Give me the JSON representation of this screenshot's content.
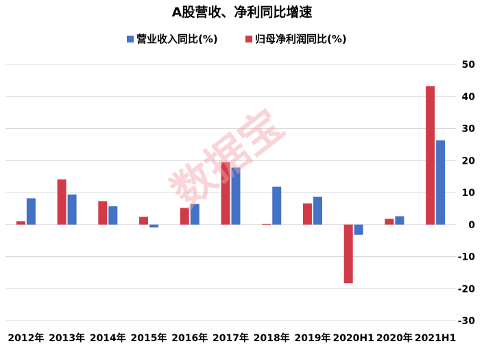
{
  "chart_data": {
    "type": "bar",
    "title": "A股营收、净利同比增速",
    "categories": [
      "2012年",
      "2013年",
      "2014年",
      "2015年",
      "2016年",
      "2017年",
      "2018年",
      "2019年",
      "2020H1",
      "2020年",
      "2021H1"
    ],
    "series": [
      {
        "name": "营业收入同比(%)",
        "color": "#4472c4",
        "values": [
          8.2,
          9.4,
          5.7,
          -0.9,
          6.4,
          17.8,
          11.8,
          8.7,
          -3.2,
          2.6,
          26.3
        ]
      },
      {
        "name": "归母净利润同比(%)",
        "color": "#d13b47",
        "values": [
          1.0,
          14.1,
          7.3,
          2.4,
          5.2,
          19.5,
          0.2,
          6.6,
          -18.3,
          1.8,
          43.2
        ]
      }
    ],
    "ylim": [
      -30,
      50
    ],
    "yticks": [
      50,
      40,
      30,
      20,
      10,
      0,
      -10,
      -20,
      -30
    ],
    "yaxis_position": "right",
    "grid": true,
    "legend": "top-center"
  },
  "watermark": "数据宝"
}
